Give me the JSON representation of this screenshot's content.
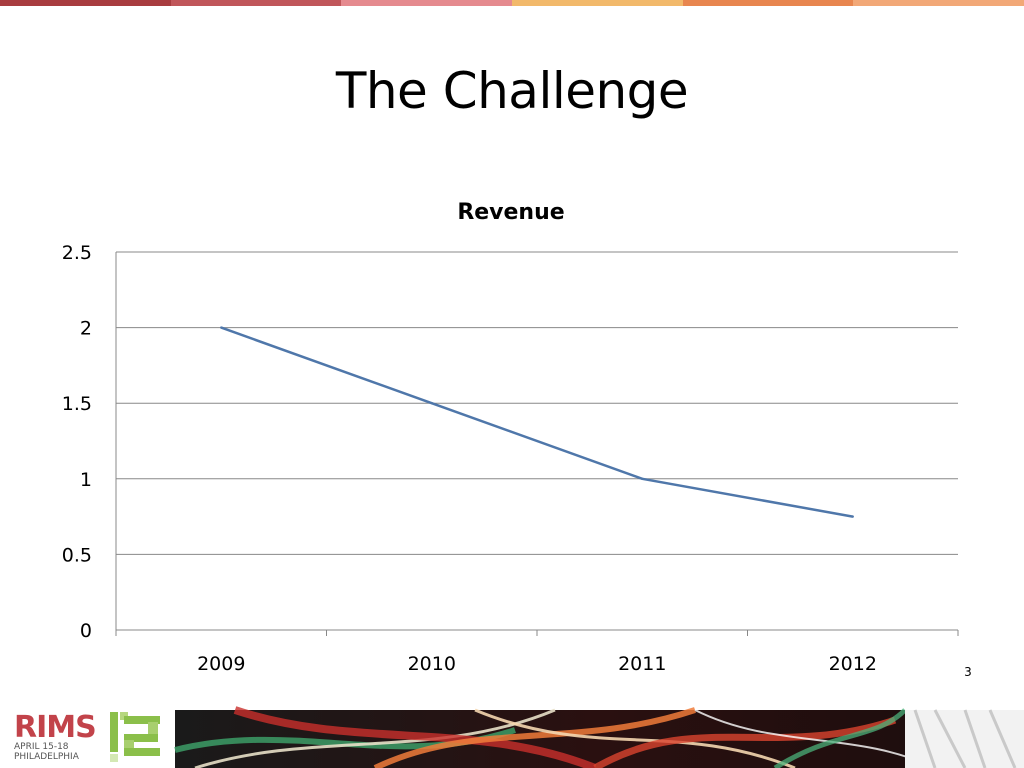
{
  "slide": {
    "title": "The Challenge",
    "page_number": "3"
  },
  "branding": {
    "logo_text": "RIMS",
    "logo_date": "APRIL 15-18",
    "logo_city": "PHILADELPHIA",
    "stripe_colors": [
      "#a83c3f",
      "#c0565a",
      "#e58a8f",
      "#f2b96b",
      "#e8864f",
      "#f2a877"
    ]
  },
  "chart_data": {
    "type": "line",
    "title": "Revenue",
    "xlabel": "",
    "ylabel": "",
    "categories": [
      "2009",
      "2010",
      "2011",
      "2012"
    ],
    "series": [
      {
        "values": [
          2,
          1.5,
          1,
          0.75
        ],
        "color": "#4f77aa"
      }
    ],
    "ylim": [
      0,
      2.5
    ],
    "yticks": [
      "0",
      "0.5",
      "1",
      "1.5",
      "2",
      "2.5"
    ],
    "grid": true,
    "legend": "none"
  }
}
